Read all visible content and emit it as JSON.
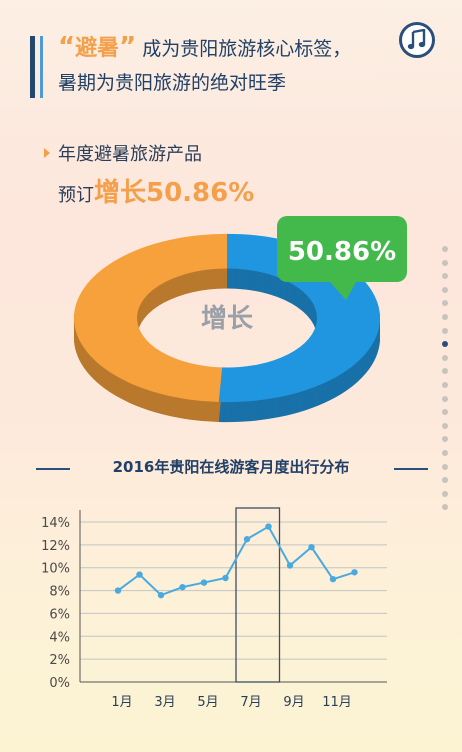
{
  "headline": {
    "quote_open": "“",
    "keyword": "避暑",
    "quote_close": "”",
    "line1_rest": "成为贵阳旅游核心标签，",
    "line2": "暑期为贵阳旅游的绝对旺季"
  },
  "music_icon": "music-note-icon",
  "subtitle": {
    "line1": "年度避暑旅游产品",
    "line2_prefix": "预订",
    "line2_highlight": "增长50.86%"
  },
  "donut": {
    "center_label": "增长",
    "callout": "50.86%",
    "value_percent": 50.86,
    "colors": {
      "highlight": "#2196e0",
      "rest": "#f6a13c",
      "callout": "#43b94b"
    }
  },
  "pager": {
    "count": 20,
    "active_index": 7
  },
  "chart_section_title": "2016年贵阳在线游客月度出行分布",
  "chart_data": {
    "type": "line",
    "title": "2016年贵阳在线游客月度出行分布",
    "x": [
      1,
      2,
      3,
      4,
      5,
      6,
      7,
      8,
      9,
      10,
      11,
      12
    ],
    "categories": [
      "1月",
      "3月",
      "5月",
      "7月",
      "9月",
      "11月"
    ],
    "series": [
      {
        "values": [
          8.0,
          9.4,
          7.6,
          8.3,
          8.7,
          9.1,
          12.5,
          13.6,
          10.2,
          11.8,
          9.0,
          9.6
        ]
      }
    ],
    "ylim": [
      0,
      14
    ],
    "yticks": [
      "0%",
      "2%",
      "4%",
      "6%",
      "8%",
      "10%",
      "12%",
      "14%"
    ],
    "highlight_months": [
      7,
      8
    ],
    "grid": true,
    "line_color": "#4aaae0"
  }
}
